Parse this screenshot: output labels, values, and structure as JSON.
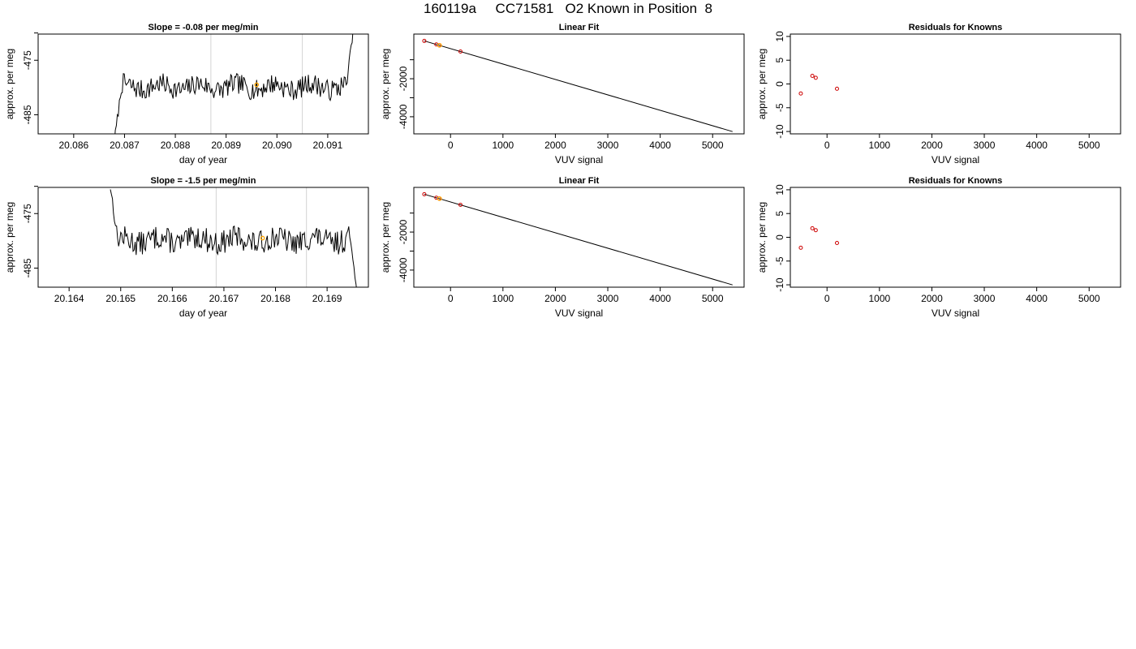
{
  "page_title": "160119a     CC71581   O2 Known in Position  8",
  "colors": {
    "line": "#000000",
    "grid": "#d3d3d3",
    "highlight": "#ffa500",
    "known_point": "#cd0000"
  },
  "chart_data": [
    {
      "type": "line",
      "title": "Slope =  -0.08  per meg/min",
      "xlabel": "day of year",
      "ylabel": "approx. per meg",
      "xlim": [
        20.0853,
        20.0918
      ],
      "ylim": [
        -488.5,
        -470.2
      ],
      "x_ticks": [
        20.086,
        20.087,
        20.088,
        20.089,
        20.09,
        20.091
      ],
      "x_tick_labels": [
        "20.086",
        "20.087",
        "20.088",
        "20.089",
        "20.090",
        "20.091"
      ],
      "y_ticks": [
        -485,
        -475
      ],
      "y_tick_labels": [
        "-485",
        "-475"
      ],
      "y_minor_ticks": [
        -470
      ],
      "vlines": [
        20.0887,
        20.0905
      ],
      "highlight": [
        20.0896,
        -479.5
      ],
      "trace": {
        "x_start": 20.0868,
        "x_end": 20.0915,
        "start_y": -490,
        "end_y": -470,
        "mean": -479.9,
        "jitter": 1.9,
        "seed": 7
      }
    },
    {
      "type": "line",
      "title": "Linear Fit",
      "xlabel": "VUV signal",
      "ylabel": "approx. per meg",
      "xlim": [
        -700,
        5600
      ],
      "ylim": [
        -4900,
        350
      ],
      "x_ticks": [
        0,
        1000,
        2000,
        3000,
        4000,
        5000
      ],
      "x_tick_labels": [
        "0",
        "1000",
        "2000",
        "3000",
        "4000",
        "5000"
      ],
      "y_ticks": [
        -4000,
        -2000
      ],
      "y_tick_labels": [
        "-4000",
        "-2000"
      ],
      "y_minor_ticks": [
        -1000,
        -3000
      ],
      "fit_line": [
        [
          -500,
          -10
        ],
        [
          5380,
          -4780
        ]
      ],
      "known_points": [
        [
          -500,
          -10
        ],
        [
          -270,
          -195
        ],
        [
          -215,
          -238
        ],
        [
          190,
          -566
        ]
      ],
      "highlight": [
        -210,
        -240
      ]
    },
    {
      "type": "scatter",
      "title": "Residuals for Knowns",
      "xlabel": "VUV signal",
      "ylabel": "approx. per meg",
      "xlim": [
        -700,
        5600
      ],
      "ylim": [
        -10.5,
        10.5
      ],
      "x_ticks": [
        0,
        1000,
        2000,
        3000,
        4000,
        5000
      ],
      "x_tick_labels": [
        "0",
        "1000",
        "2000",
        "3000",
        "4000",
        "5000"
      ],
      "y_ticks": [
        -10,
        -5,
        0,
        5,
        10
      ],
      "y_tick_labels": [
        "-10",
        "-5",
        "0",
        "5",
        "10"
      ],
      "points": [
        [
          -500,
          -2.0
        ],
        [
          -280,
          1.7
        ],
        [
          -215,
          1.3
        ],
        [
          190,
          -1.0
        ]
      ]
    },
    {
      "type": "line",
      "title": "Slope =  -1.5  per meg/min",
      "xlabel": "day of year",
      "ylabel": "approx. per meg",
      "xlim": [
        20.1634,
        20.1698
      ],
      "ylim": [
        -488.5,
        -470.2
      ],
      "x_ticks": [
        20.164,
        20.165,
        20.166,
        20.167,
        20.168,
        20.169
      ],
      "x_tick_labels": [
        "20.164",
        "20.165",
        "20.166",
        "20.167",
        "20.168",
        "20.169"
      ],
      "y_ticks": [
        -485,
        -475
      ],
      "y_tick_labels": [
        "-485",
        "-475"
      ],
      "y_minor_ticks": [
        -470
      ],
      "vlines": [
        20.16685,
        20.1686
      ],
      "highlight": [
        20.16775,
        -479.5
      ],
      "trace": {
        "x_start": 20.1648,
        "x_end": 20.1696,
        "start_y": -470,
        "end_y": -490,
        "mean": -479.9,
        "jitter": 2.2,
        "seed": 13
      }
    },
    {
      "type": "line",
      "title": "Linear Fit",
      "xlabel": "VUV signal",
      "ylabel": "approx. per meg",
      "xlim": [
        -700,
        5600
      ],
      "ylim": [
        -4900,
        350
      ],
      "x_ticks": [
        0,
        1000,
        2000,
        3000,
        4000,
        5000
      ],
      "x_tick_labels": [
        "0",
        "1000",
        "2000",
        "3000",
        "4000",
        "5000"
      ],
      "y_ticks": [
        -4000,
        -2000
      ],
      "y_tick_labels": [
        "-4000",
        "-2000"
      ],
      "y_minor_ticks": [
        -1000,
        -3000
      ],
      "fit_line": [
        [
          -500,
          -10
        ],
        [
          5380,
          -4780
        ]
      ],
      "known_points": [
        [
          -500,
          -10
        ],
        [
          -270,
          -195
        ],
        [
          -215,
          -238
        ],
        [
          190,
          -566
        ]
      ],
      "highlight": [
        -210,
        -240
      ]
    },
    {
      "type": "scatter",
      "title": "Residuals for Knowns",
      "xlabel": "VUV signal",
      "ylabel": "approx. per meg",
      "xlim": [
        -700,
        5600
      ],
      "ylim": [
        -10.5,
        10.5
      ],
      "x_ticks": [
        0,
        1000,
        2000,
        3000,
        4000,
        5000
      ],
      "x_tick_labels": [
        "0",
        "1000",
        "2000",
        "3000",
        "4000",
        "5000"
      ],
      "y_ticks": [
        -10,
        -5,
        0,
        5,
        10
      ],
      "y_tick_labels": [
        "-10",
        "-5",
        "0",
        "5",
        "10"
      ],
      "points": [
        [
          -500,
          -2.2
        ],
        [
          -280,
          1.9
        ],
        [
          -215,
          1.5
        ],
        [
          190,
          -1.2
        ]
      ]
    }
  ]
}
